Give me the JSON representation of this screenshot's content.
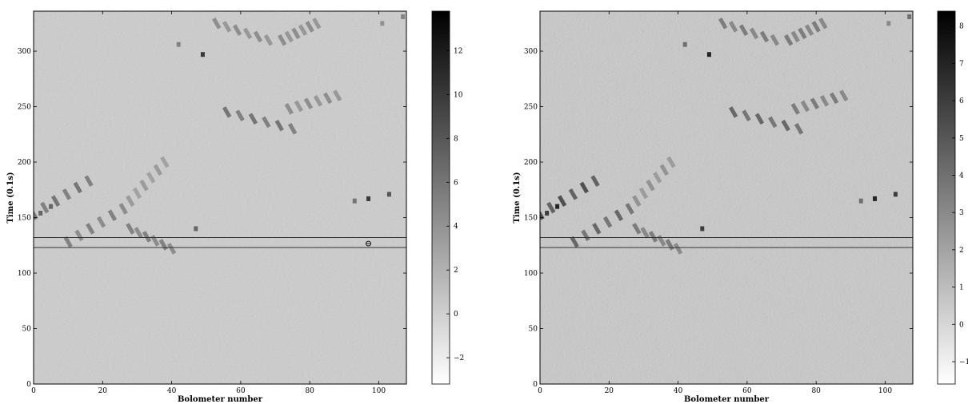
{
  "chart_data": [
    {
      "type": "heatmap",
      "xlabel": "Bolometer number",
      "ylabel": "Time (0.1s)",
      "xlim": [
        0,
        108
      ],
      "ylim": [
        0,
        336
      ],
      "xticks": [
        0,
        20,
        40,
        60,
        80,
        100
      ],
      "yticks": [
        0,
        50,
        100,
        150,
        200,
        250,
        300
      ],
      "colorbar": {
        "vmin": -3.2,
        "vmax": 13.8,
        "ticks": [
          -2,
          0,
          2,
          4,
          6,
          8,
          10,
          12
        ],
        "colormap": "gray_r"
      },
      "horizontal_lines": [
        123,
        132
      ],
      "annotation": {
        "symbol": "⊖",
        "x": 97,
        "y": 127
      },
      "grid": false,
      "features": [
        {
          "kind": "streak",
          "x0": 0,
          "y0": 153,
          "x1": 16,
          "y1": 183,
          "value": 7
        },
        {
          "kind": "streak",
          "x0": 10,
          "y0": 128,
          "x1": 26,
          "y1": 158,
          "value": 6
        },
        {
          "kind": "streak",
          "x0": 28,
          "y0": 140,
          "x1": 40,
          "y1": 122,
          "value": 6
        },
        {
          "kind": "streak",
          "x0": 28,
          "y0": 165,
          "x1": 38,
          "y1": 200,
          "value": 4
        },
        {
          "kind": "streak",
          "x0": 56,
          "y0": 245,
          "x1": 75,
          "y1": 230,
          "value": 7
        },
        {
          "kind": "streak",
          "x0": 74,
          "y0": 248,
          "x1": 88,
          "y1": 260,
          "value": 5
        },
        {
          "kind": "streak",
          "x0": 53,
          "y0": 325,
          "x1": 68,
          "y1": 310,
          "value": 5
        },
        {
          "kind": "streak",
          "x0": 72,
          "y0": 310,
          "x1": 82,
          "y1": 325,
          "value": 5
        },
        {
          "kind": "dot",
          "x": 49,
          "y": 297,
          "value": 10
        },
        {
          "kind": "dot",
          "x": 42,
          "y": 306,
          "value": 5
        },
        {
          "kind": "dot",
          "x": 97,
          "y": 167,
          "value": 10
        },
        {
          "kind": "dot",
          "x": 103,
          "y": 171,
          "value": 8
        },
        {
          "kind": "dot",
          "x": 93,
          "y": 165,
          "value": 6
        },
        {
          "kind": "dot",
          "x": 47,
          "y": 140,
          "value": 7
        },
        {
          "kind": "dot",
          "x": 5,
          "y": 160,
          "value": 7
        },
        {
          "kind": "dot",
          "x": 2,
          "y": 154,
          "value": 7
        },
        {
          "kind": "dot",
          "x": 107,
          "y": 331,
          "value": 5
        },
        {
          "kind": "dot",
          "x": 101,
          "y": 325,
          "value": 4
        }
      ]
    },
    {
      "type": "heatmap",
      "xlabel": "Bolometer number",
      "ylabel": "Time (0.1s)",
      "xlim": [
        0,
        108
      ],
      "ylim": [
        0,
        336
      ],
      "xticks": [
        0,
        20,
        40,
        60,
        80,
        100
      ],
      "yticks": [
        0,
        50,
        100,
        150,
        200,
        250,
        300
      ],
      "colorbar": {
        "vmin": -1.6,
        "vmax": 8.4,
        "ticks": [
          -1,
          0,
          1,
          2,
          3,
          4,
          5,
          6,
          7,
          8
        ],
        "colormap": "gray_r"
      },
      "horizontal_lines": [
        123,
        132
      ],
      "grid": false,
      "features": [
        {
          "kind": "streak",
          "x0": 0,
          "y0": 153,
          "x1": 16,
          "y1": 183,
          "value": 6
        },
        {
          "kind": "streak",
          "x0": 10,
          "y0": 128,
          "x1": 26,
          "y1": 158,
          "value": 5
        },
        {
          "kind": "streak",
          "x0": 28,
          "y0": 140,
          "x1": 40,
          "y1": 122,
          "value": 4
        },
        {
          "kind": "streak",
          "x0": 28,
          "y0": 165,
          "x1": 38,
          "y1": 200,
          "value": 3
        },
        {
          "kind": "streak",
          "x0": 56,
          "y0": 245,
          "x1": 75,
          "y1": 230,
          "value": 5
        },
        {
          "kind": "streak",
          "x0": 74,
          "y0": 248,
          "x1": 88,
          "y1": 260,
          "value": 4
        },
        {
          "kind": "streak",
          "x0": 53,
          "y0": 325,
          "x1": 68,
          "y1": 310,
          "value": 4
        },
        {
          "kind": "streak",
          "x0": 72,
          "y0": 310,
          "x1": 82,
          "y1": 325,
          "value": 4
        },
        {
          "kind": "dot",
          "x": 49,
          "y": 297,
          "value": 7
        },
        {
          "kind": "dot",
          "x": 42,
          "y": 306,
          "value": 4
        },
        {
          "kind": "dot",
          "x": 97,
          "y": 167,
          "value": 7
        },
        {
          "kind": "dot",
          "x": 103,
          "y": 171,
          "value": 6
        },
        {
          "kind": "dot",
          "x": 93,
          "y": 165,
          "value": 4
        },
        {
          "kind": "dot",
          "x": 47,
          "y": 140,
          "value": 6
        },
        {
          "kind": "dot",
          "x": 5,
          "y": 160,
          "value": 7
        },
        {
          "kind": "dot",
          "x": 2,
          "y": 154,
          "value": 6
        },
        {
          "kind": "dot",
          "x": 107,
          "y": 331,
          "value": 4
        },
        {
          "kind": "dot",
          "x": 101,
          "y": 325,
          "value": 3
        }
      ]
    }
  ]
}
